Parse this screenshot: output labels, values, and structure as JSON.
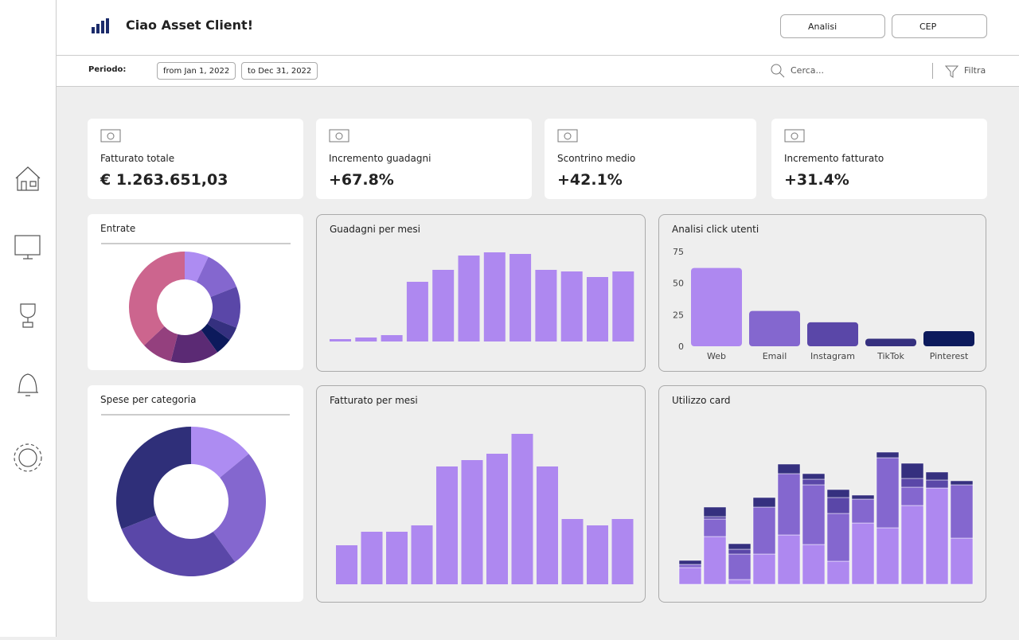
{
  "header": {
    "greeting": "Ciao Asset Client!",
    "buttons": [
      "Analisi",
      "CEP"
    ]
  },
  "filters": {
    "label": "Periodo:",
    "from": "from Jan 1, 2022",
    "to": "to Dec 31, 2022",
    "search": "Cerca...",
    "filter": "Filtra"
  },
  "kpis": [
    {
      "label": "Fatturato totale",
      "value": "€ 1.263.651,03"
    },
    {
      "label": "Incremento guadagni",
      "value": "+67.8%"
    },
    {
      "label": "Scontrino medio",
      "value": "+42.1%"
    },
    {
      "label": "Incremento fatturato",
      "value": "+31.4%"
    }
  ],
  "entrate": {
    "type": "pie",
    "title": "Entrate",
    "values": [
      7,
      12,
      12,
      4,
      5,
      14,
      9,
      37
    ],
    "colors": [
      "#ad8cf2",
      "#8467cf",
      "#5a47a8",
      "#35307f",
      "#0c1a5c",
      "#5b2a74",
      "#94407e",
      "#cc658e"
    ]
  },
  "spese": {
    "type": "pie",
    "title": "Spese per categoria",
    "values": [
      14,
      26,
      29,
      31
    ],
    "colors": [
      "#ad8cf2",
      "#8467cf",
      "#5a47a8",
      "#2f2f79"
    ]
  },
  "guadagni": {
    "type": "bar",
    "title": "Guadagni per mesi",
    "values": [
      3,
      5,
      8,
      75,
      90,
      108,
      112,
      110,
      90,
      88,
      81,
      88
    ],
    "color": "#ae88f0"
  },
  "fatturato": {
    "type": "bar",
    "title": "Fatturato per mesi",
    "values": [
      49,
      66,
      66,
      74,
      148,
      156,
      164,
      189,
      148,
      82,
      74,
      82
    ],
    "color": "#ae88f0"
  },
  "click": {
    "type": "bar",
    "title": "Analisi click utenti",
    "categories": [
      "Web",
      "Email",
      "Instagram",
      "TikTok",
      "Pinterest"
    ],
    "values": [
      62,
      28,
      19,
      6,
      12
    ],
    "colors": [
      "#ae88f0",
      "#8467cf",
      "#5a47a8",
      "#35307f",
      "#0c1a5c"
    ],
    "ylim": [
      0,
      75
    ],
    "yticks": [
      0,
      25,
      50,
      75
    ]
  },
  "card": {
    "type": "stacked_bar",
    "title": "Utilizzo card",
    "series": [
      {
        "color": "#ae88f0",
        "values": [
          21,
          60,
          6,
          38,
          62,
          50,
          29,
          77,
          71,
          99,
          121,
          58
        ]
      },
      {
        "color": "#8467cf",
        "values": [
          4,
          22,
          32,
          59,
          77,
          75,
          60,
          30,
          88,
          23,
          0,
          67
        ]
      },
      {
        "color": "#5a47a8",
        "values": [
          0,
          3,
          6,
          0,
          0,
          7,
          20,
          0,
          0,
          11,
          10,
          0
        ]
      },
      {
        "color": "#35307f",
        "values": [
          5,
          12,
          7,
          12,
          12,
          7,
          10,
          5,
          7,
          19,
          10,
          5
        ]
      }
    ]
  }
}
